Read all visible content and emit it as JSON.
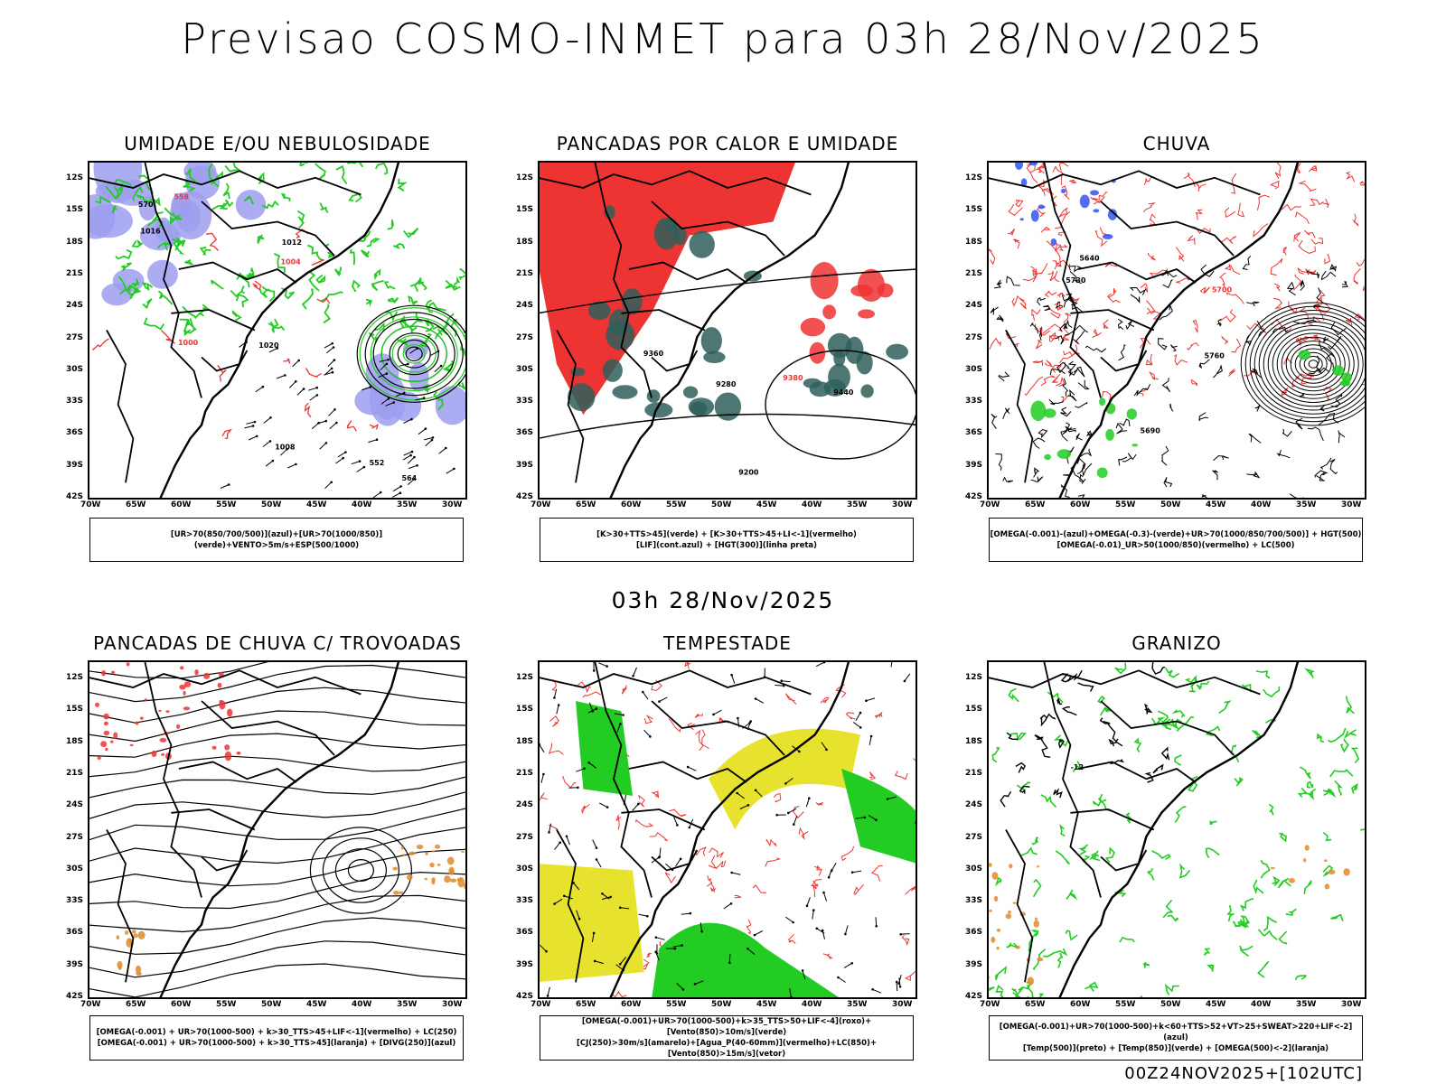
{
  "header": {
    "title": "Previsao COSMO-INMET  para 03h 28/Nov/2025"
  },
  "mid_label": "03h 28/Nov/2025",
  "footer": "00Z24NOV2025+[102UTC]",
  "axes": {
    "lat_labels": [
      "12S",
      "15S",
      "18S",
      "21S",
      "24S",
      "27S",
      "30S",
      "33S",
      "36S",
      "39S",
      "42S"
    ],
    "lon_labels": [
      "70W",
      "65W",
      "60W",
      "55W",
      "50W",
      "45W",
      "40W",
      "35W",
      "30W"
    ]
  },
  "colors": {
    "blue_moist": "#9d9df0",
    "green": "#22cc22",
    "red": "#ee3333",
    "darkteal": "#2f5f5a",
    "yellow": "#e6e22e",
    "orange": "#e08a2a",
    "black": "#000000"
  },
  "panels": [
    {
      "id": "umidade",
      "title": "UMIDADE E/OU NEBULOSIDADE",
      "legend": [
        "[UR>70(850/700/500)](azul)+[UR>70(1000/850)](verde)+VENTO>5m/s+ESP(500/1000)"
      ],
      "labels": [
        "1008",
        "1012",
        "1004",
        "1016",
        "1020",
        "1000",
        "570",
        "564",
        "558",
        "552"
      ]
    },
    {
      "id": "pancadas_calor",
      "title": "PANCADAS POR CALOR E UMIDADE",
      "legend": [
        "[K>30+TTS>45](verde) + [K>30+TTS>45+LI<-1](vermelho)",
        "[LIF](cont.azul) + [HGT(300)](linha preta)"
      ],
      "labels": [
        "9440",
        "9360",
        "9380",
        "9280",
        "9200"
      ]
    },
    {
      "id": "chuva",
      "title": "CHUVA",
      "legend": [
        "[OMEGA(-0.001)-(azul)+OMEGA(-0.3)-(verde)+UR>70(1000/850/700/500)] + HGT(500)",
        "[OMEGA(-0.01)_UR>50(1000/850)(vermelho) + LC(500)"
      ],
      "labels": [
        "5760",
        "5730",
        "5700",
        "5690",
        "5640"
      ]
    },
    {
      "id": "trovoadas",
      "title": "PANCADAS DE CHUVA C/ TROVOADAS",
      "legend": [
        "[OMEGA(-0.001) + UR>70(1000-500) + k>30_TTS>45+LIF<-1](vermelho) + LC(250)",
        "[OMEGA(-0.001) + UR>70(1000-500) + k>30_TTS>45](laranja) + [DIVG(250)](azul)"
      ],
      "labels": []
    },
    {
      "id": "tempestade",
      "title": "TEMPESTADE",
      "legend": [
        "[OMEGA(-0.001)+UR>70(1000-500)+k>35_TTS>50+LIF<-4](roxo)+[Vento(850)>10m/s](verde)",
        "[CJ(250)>30m/s](amarelo)+[Agua_P(40-60mm)](vermelho)+LC(850)+[Vento(850)>15m/s](vetor)"
      ],
      "labels": []
    },
    {
      "id": "granizo",
      "title": "GRANIZO",
      "legend": [
        "[OMEGA(-0.001)+UR>70(1000-500)+k<60+TTS>52+VT>25+SWEAT>220+LIF<-2](azul)",
        "[Temp(500)](preto) + [Temp(850)](verde) + [OMEGA(500)<-2](laranja)"
      ],
      "labels": [
        "-12"
      ]
    }
  ]
}
